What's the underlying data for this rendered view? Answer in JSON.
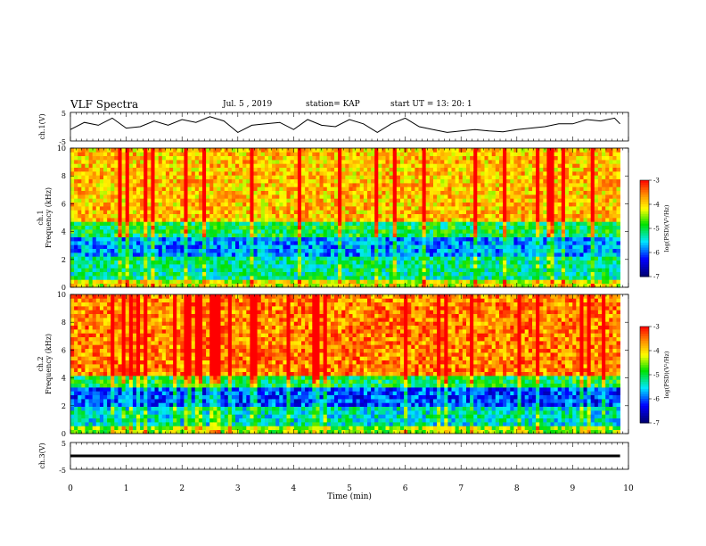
{
  "header": {
    "title": "VLF Spectra",
    "date": "Jul. 5 , 2019",
    "station": "station= KAP",
    "start_ut": "start UT = 13: 20: 1"
  },
  "chart_data": [
    {
      "id": "ch1-waveform",
      "type": "line",
      "ylabel": "ch.1(V)",
      "ylim": [
        -5,
        5
      ],
      "yticks": [
        "5",
        "-5"
      ],
      "xlim": [
        0,
        10
      ],
      "series_color": "#000000",
      "x": [
        0,
        0.25,
        0.5,
        0.75,
        1,
        1.25,
        1.5,
        1.75,
        2,
        2.25,
        2.5,
        2.75,
        3,
        3.25,
        3.5,
        3.75,
        4,
        4.25,
        4.5,
        4.75,
        5,
        5.25,
        5.5,
        5.75,
        6,
        6.25,
        6.5,
        6.75,
        7,
        7.25,
        7.5,
        7.75,
        8,
        8.25,
        8.5,
        8.75,
        9,
        9.25,
        9.5,
        9.75,
        9.85
      ],
      "y": [
        -1,
        1.5,
        0.5,
        3,
        -0.5,
        0,
        2,
        0.5,
        2.5,
        1.5,
        3.5,
        2,
        -2,
        0.5,
        1,
        1.5,
        -1,
        2.5,
        0.5,
        0,
        2.5,
        1,
        -2,
        1,
        3,
        0,
        -1,
        -2,
        -1.5,
        -1,
        -1.5,
        -1.8,
        -1,
        -0.5,
        0,
        1,
        1,
        2.5,
        2,
        3,
        1
      ]
    },
    {
      "id": "ch1-spectrogram",
      "type": "heatmap",
      "ylabel": "ch.1\nFrequency (kHz)",
      "ylim": [
        0,
        10
      ],
      "yticks": [
        0,
        2,
        4,
        6,
        8,
        10
      ],
      "xlim": [
        0,
        10
      ],
      "colorbar": {
        "label": "log(PSD)(V²/Hz)",
        "range": [
          -7,
          -3
        ],
        "ticks": [
          "-3",
          "-4",
          "-5",
          "-6",
          "-7"
        ]
      },
      "bands": [
        {
          "from": 0,
          "to": 0.5,
          "level": -4.2
        },
        {
          "from": 0.5,
          "to": 2.3,
          "level": -5.2
        },
        {
          "from": 2.3,
          "to": 3.6,
          "level": -5.8
        },
        {
          "from": 3.6,
          "to": 4.8,
          "level": -5.0
        },
        {
          "from": 4.8,
          "to": 10,
          "level": -3.9
        }
      ]
    },
    {
      "id": "ch2-spectrogram",
      "type": "heatmap",
      "ylabel": "ch.2\nFrequency (kHz)",
      "ylim": [
        0,
        10
      ],
      "yticks": [
        0,
        2,
        4,
        6,
        8,
        10
      ],
      "xlim": [
        0,
        10
      ],
      "colorbar": {
        "label": "log(PSD)(V²/Hz)",
        "range": [
          -7,
          -3
        ],
        "ticks": [
          "-3",
          "-4",
          "-5",
          "-6",
          "-7"
        ]
      },
      "bands": [
        {
          "from": 0,
          "to": 0.5,
          "level": -4.5
        },
        {
          "from": 0.5,
          "to": 2.0,
          "level": -5.4
        },
        {
          "from": 2.0,
          "to": 3.4,
          "level": -6.1
        },
        {
          "from": 3.4,
          "to": 4.2,
          "level": -5.0
        },
        {
          "from": 4.2,
          "to": 10,
          "level": -3.6
        }
      ]
    },
    {
      "id": "ch3-waveform",
      "type": "line",
      "ylabel": "ch.3(V)",
      "ylim": [
        -5,
        5
      ],
      "yticks": [
        "5",
        "-5"
      ],
      "xlim": [
        0,
        10
      ],
      "series_color": "#000000",
      "x": [
        0,
        9.85
      ],
      "y": [
        0,
        0
      ]
    }
  ],
  "x_axis": {
    "label": "Time (min)",
    "ticks": [
      "0",
      "1",
      "2",
      "3",
      "4",
      "5",
      "6",
      "7",
      "8",
      "9",
      "10"
    ]
  }
}
